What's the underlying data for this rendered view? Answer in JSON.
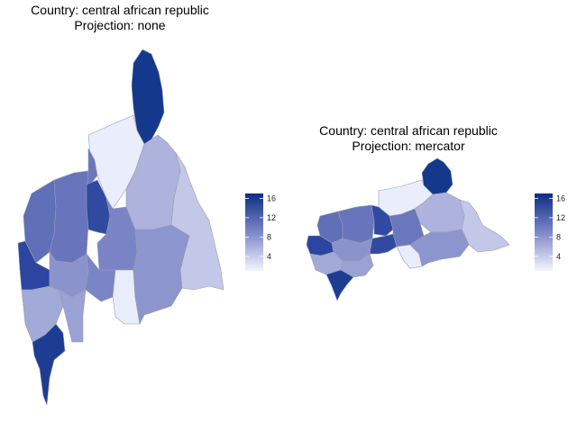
{
  "maps": [
    {
      "title_line1": "Country: central african republic",
      "title_line2": "Projection: none"
    },
    {
      "title_line1": "Country: central african republic",
      "title_line2": "Projection: mercator"
    }
  ],
  "legend": {
    "ticks": [
      "16",
      "12",
      "8",
      "4"
    ],
    "tick_values": [
      16,
      12,
      8,
      4
    ],
    "range": [
      1,
      17
    ],
    "color_low": "#f4f5fd",
    "color_high": "#0b2e82"
  }
}
